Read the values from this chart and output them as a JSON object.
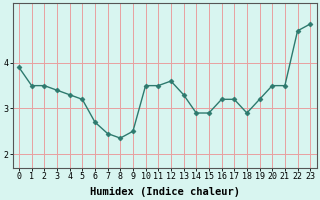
{
  "x": [
    0,
    1,
    2,
    3,
    4,
    5,
    6,
    7,
    8,
    9,
    10,
    11,
    12,
    13,
    14,
    15,
    16,
    17,
    18,
    19,
    20,
    21,
    22,
    23
  ],
  "y": [
    3.9,
    3.5,
    3.5,
    3.4,
    3.3,
    3.2,
    2.7,
    2.45,
    2.35,
    2.5,
    3.5,
    3.5,
    3.6,
    3.3,
    2.9,
    2.9,
    3.2,
    3.2,
    2.9,
    3.2,
    3.5,
    3.5,
    4.7,
    4.85
  ],
  "line_color": "#2d7a6e",
  "marker": "D",
  "marker_size": 2.5,
  "linewidth": 1.0,
  "bg_color": "#d8f5f0",
  "plot_bg_color": "#d8f5f0",
  "grid_color": "#e8a0a0",
  "xlabel": "Humidex (Indice chaleur)",
  "xlabel_fontsize": 7.5,
  "tick_fontsize": 6.0,
  "yticks": [
    2,
    3,
    4
  ],
  "ylim": [
    1.7,
    5.3
  ],
  "xlim": [
    -0.5,
    23.5
  ],
  "spine_color": "#555555"
}
